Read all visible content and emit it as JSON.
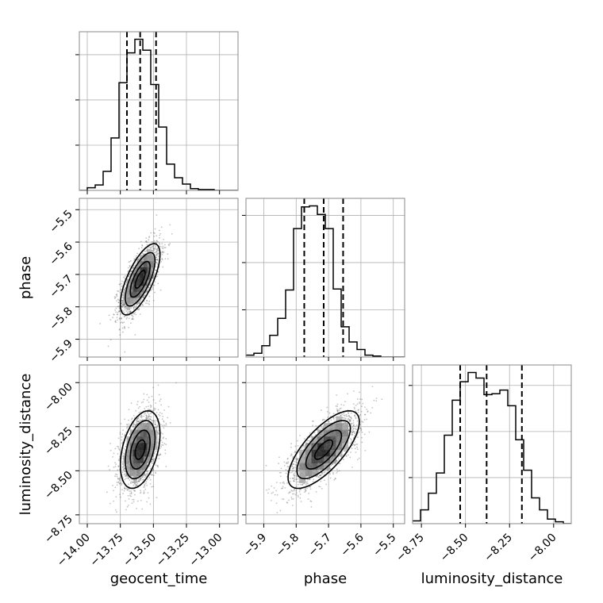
{
  "chart_data": {
    "type": "corner",
    "parameters": [
      "geocent_time",
      "phase",
      "luminosity_distance"
    ],
    "axis_labels": {
      "x": [
        "geocent_time",
        "phase",
        "luminosity_distance"
      ],
      "y": [
        "",
        "phase",
        "luminosity_distance"
      ]
    },
    "ranges": {
      "geocent_time": [
        -14.06,
        -12.86
      ],
      "phase": [
        -5.955,
        -5.465
      ],
      "luminosity_distance": [
        -8.8,
        -7.9
      ]
    },
    "ticks": {
      "geocent_time": {
        "values": [
          -14.0,
          -13.75,
          -13.5,
          -13.25,
          -13.0
        ],
        "labels": [
          "−14.00",
          "−13.75",
          "−13.50",
          "−13.25",
          "−13.00"
        ]
      },
      "phase": {
        "values": [
          -5.9,
          -5.8,
          -5.7,
          -5.6,
          -5.5
        ],
        "labels": [
          "−5.9",
          "−5.8",
          "−5.7",
          "−5.6",
          "−5.5"
        ]
      },
      "luminosity_distance": {
        "values": [
          -8.75,
          -8.5,
          -8.25,
          -8.0
        ],
        "labels": [
          "−8.75",
          "−8.50",
          "−8.25",
          "−8.00"
        ]
      }
    },
    "histograms": {
      "geocent_time": {
        "bin_edges": [
          -14.06,
          -14.0,
          -13.94,
          -13.88,
          -13.82,
          -13.76,
          -13.7,
          -13.64,
          -13.58,
          -13.52,
          -13.46,
          -13.4,
          -13.34,
          -13.28,
          -13.22,
          -13.16,
          -13.1,
          -13.04,
          -12.98,
          -12.92,
          -12.86
        ],
        "counts": [
          0,
          3,
          6,
          21,
          58,
          119,
          152,
          167,
          155,
          117,
          70,
          29,
          14,
          7,
          2,
          1,
          1,
          0,
          0,
          0
        ],
        "quantiles": [
          -13.7,
          -13.6,
          -13.48
        ]
      },
      "phase": {
        "bin_edges": [
          -5.955,
          -5.9305,
          -5.906,
          -5.8815,
          -5.857,
          -5.8325,
          -5.808,
          -5.7835,
          -5.759,
          -5.7345,
          -5.71,
          -5.6855,
          -5.661,
          -5.6365,
          -5.612,
          -5.5875,
          -5.563,
          -5.5385,
          -5.514,
          -5.4895,
          -5.465
        ],
        "counts": [
          2,
          4,
          12,
          23,
          41,
          71,
          136,
          159,
          160,
          151,
          136,
          72,
          32,
          16,
          8,
          2,
          1,
          0,
          0,
          0
        ],
        "quantiles": [
          -5.775,
          -5.715,
          -5.655
        ]
      },
      "luminosity_distance": {
        "bin_edges": [
          -8.8,
          -8.755,
          -8.71,
          -8.665,
          -8.62,
          -8.575,
          -8.53,
          -8.485,
          -8.44,
          -8.395,
          -8.35,
          -8.305,
          -8.26,
          -8.215,
          -8.17,
          -8.125,
          -8.08,
          -8.035,
          -7.99,
          -7.945,
          -7.9
        ],
        "counts": [
          3,
          15,
          33,
          55,
          96,
          134,
          154,
          164,
          158,
          140,
          141,
          145,
          128,
          91,
          58,
          28,
          15,
          5,
          2,
          0
        ],
        "quantiles": [
          -8.53,
          -8.38,
          -8.18
        ]
      }
    },
    "joint": [
      {
        "x": "geocent_time",
        "y": "phase",
        "correlation": 0.7,
        "mean": [
          -13.6,
          -5.715
        ],
        "std": [
          0.075,
          0.055
        ]
      },
      {
        "x": "geocent_time",
        "y": "luminosity_distance",
        "correlation": 0.4,
        "mean": [
          -13.6,
          -8.38
        ],
        "std": [
          0.075,
          0.11
        ]
      },
      {
        "x": "phase",
        "y": "luminosity_distance",
        "correlation": 0.72,
        "mean": [
          -5.715,
          -8.38
        ],
        "std": [
          0.055,
          0.11
        ]
      }
    ],
    "contour_levels_sigma": [
      0.5,
      1.0,
      1.5,
      2.0
    ],
    "grid": true,
    "colors": {
      "line": "#000000",
      "grid": "#b0b0b0",
      "points": "#555555"
    }
  }
}
